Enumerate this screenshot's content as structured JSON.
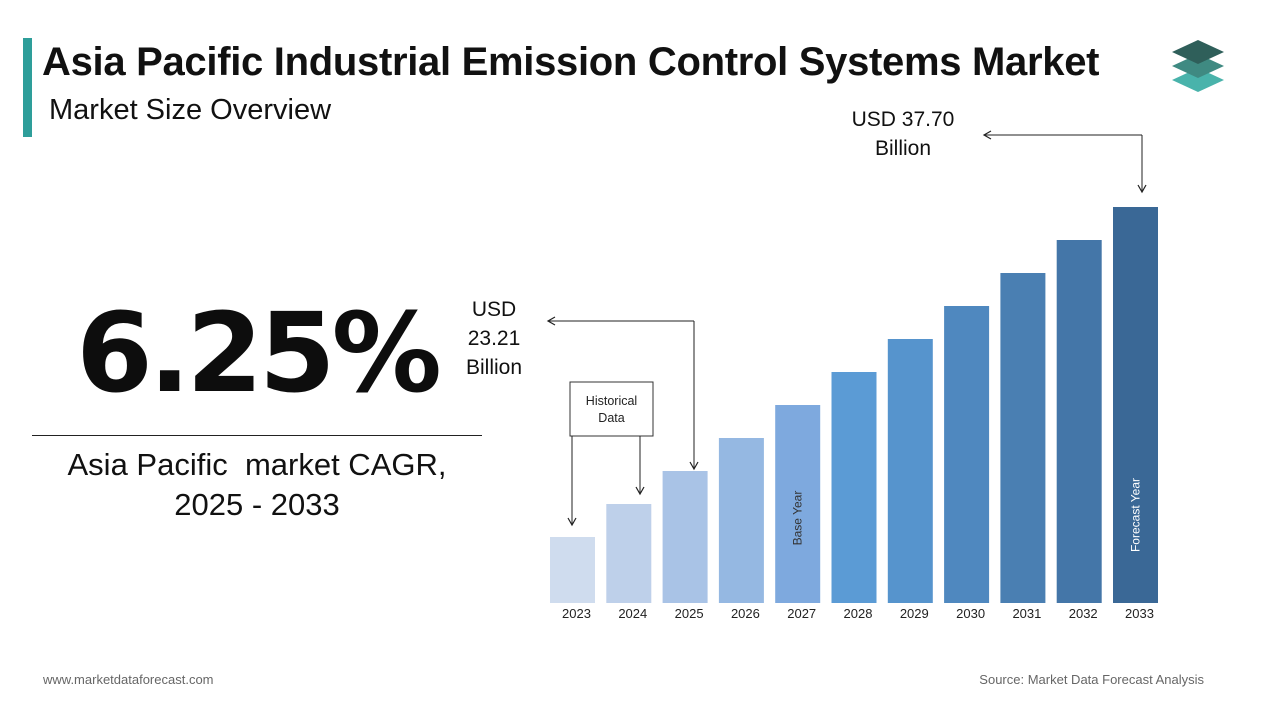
{
  "header": {
    "title": "Asia Pacific Industrial Emission Control Systems Market",
    "subtitle": "Market Size Overview"
  },
  "cagr": {
    "value": "6.25%",
    "label_line1": "Asia Pacific  market CAGR,",
    "label_line2": "2025 - 2033"
  },
  "colors": {
    "accent": "#2e9e9a",
    "logo_top": "#2f5f5a",
    "logo_mid": "#3f8a82",
    "logo_bottom": "#49b3ab"
  },
  "chart_data": {
    "type": "bar",
    "categories": [
      "2023",
      "2024",
      "2025",
      "2026",
      "2027",
      "2028",
      "2029",
      "2030",
      "2031",
      "2032",
      "2033"
    ],
    "values": [
      21.9,
      22.55,
      23.21,
      23.86,
      24.52,
      25.17,
      25.82,
      26.48,
      27.13,
      27.79,
      37.7
    ],
    "colors": [
      "#cfdcee",
      "#bed0ea",
      "#a9c3e6",
      "#95b8e2",
      "#7ea9de",
      "#5b9bd5",
      "#5694cd",
      "#4f88bf",
      "#4a7fb2",
      "#4476a8",
      "#3a6896"
    ],
    "bar_labels": [
      "",
      "",
      "",
      "",
      "Base Year",
      "",
      "",
      "",
      "",
      "",
      "Forecast Year"
    ],
    "annotations": {
      "start_value": [
        "USD",
        "23.21",
        "Billion"
      ],
      "end_value": [
        "USD 37.70",
        "Billion"
      ],
      "historical_box": [
        "Historical",
        "Data"
      ]
    },
    "title": "",
    "xlabel": "",
    "ylabel": "",
    "grid": false,
    "legend": "none"
  },
  "footer": {
    "website": "www.marketdataforecast.com",
    "source": "Source: Market Data Forecast Analysis"
  }
}
